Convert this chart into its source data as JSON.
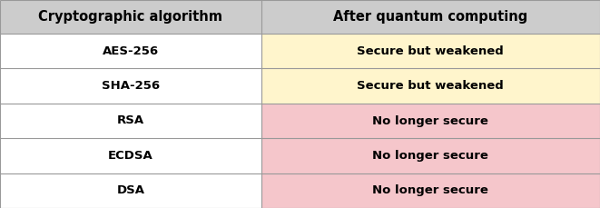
{
  "col1_header": "Cryptographic algorithm",
  "col2_header": "After quantum computing",
  "rows": [
    {
      "algo": "AES-256",
      "status": "Secure but weakened",
      "color": "#FFF5CC"
    },
    {
      "algo": "SHA-256",
      "status": "Secure but weakened",
      "color": "#FFF5CC"
    },
    {
      "algo": "RSA",
      "status": "No longer secure",
      "color": "#F5C6CB"
    },
    {
      "algo": "ECDSA",
      "status": "No longer secure",
      "color": "#F5C6CB"
    },
    {
      "algo": "DSA",
      "status": "No longer secure",
      "color": "#F5C6CB"
    }
  ],
  "header_bg": "#CCCCCC",
  "col1_bg": "#FFFFFF",
  "border_color": "#999999",
  "header_fontsize": 10.5,
  "cell_fontsize": 9.5,
  "col_split": 0.435,
  "fig_width": 6.61,
  "fig_height": 2.29,
  "dpi": 100
}
